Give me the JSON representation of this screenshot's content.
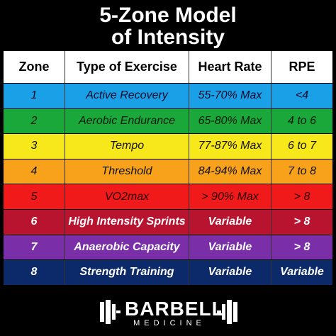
{
  "title": {
    "line1": "5-Zone Model",
    "line2": "of Intensity"
  },
  "table": {
    "headers": [
      "Zone",
      "Type of Exercise",
      "Heart Rate",
      "RPE"
    ],
    "rows": [
      {
        "zone": "1",
        "exercise": "Active Recovery",
        "heart_rate": "55-70% Max",
        "rpe": "<4",
        "bg": "#1aa0e6",
        "fg": "#0a0a2a"
      },
      {
        "zone": "2",
        "exercise": "Aerobic Endurance",
        "heart_rate": "65-80% Max",
        "rpe": "4 to 6",
        "bg": "#1aa83a",
        "fg": "#0a1a0a"
      },
      {
        "zone": "3",
        "exercise": "Tempo",
        "heart_rate": "77-87% Max",
        "rpe": "6 to 7",
        "bg": "#f6e81a",
        "fg": "#111111"
      },
      {
        "zone": "4",
        "exercise": "Threshold",
        "heart_rate": "84-94% Max",
        "rpe": "7 to 8",
        "bg": "#f7a21a",
        "fg": "#111111"
      },
      {
        "zone": "5",
        "exercise": "VO2max",
        "heart_rate": "> 90% Max",
        "rpe": "> 8",
        "bg": "#f01a1a",
        "fg": "#2a0000"
      },
      {
        "zone": "6",
        "exercise": "High Intensity Sprints",
        "heart_rate": "Variable",
        "rpe": "> 8",
        "bg": "#b81430",
        "fg": "#ffffff"
      },
      {
        "zone": "7",
        "exercise": "Anaerobic Capacity",
        "heart_rate": "Variable",
        "rpe": "> 8",
        "bg": "#7a2ea8",
        "fg": "#ffffff"
      },
      {
        "zone": "8",
        "exercise": "Strength Training",
        "heart_rate": "Variable",
        "rpe": "Variable",
        "bg": "#0c2a6a",
        "fg": "#ffffff"
      }
    ]
  },
  "footer": {
    "brand": "BARBELL",
    "sub": "MEDICINE",
    "icon": "barbell-icon"
  }
}
